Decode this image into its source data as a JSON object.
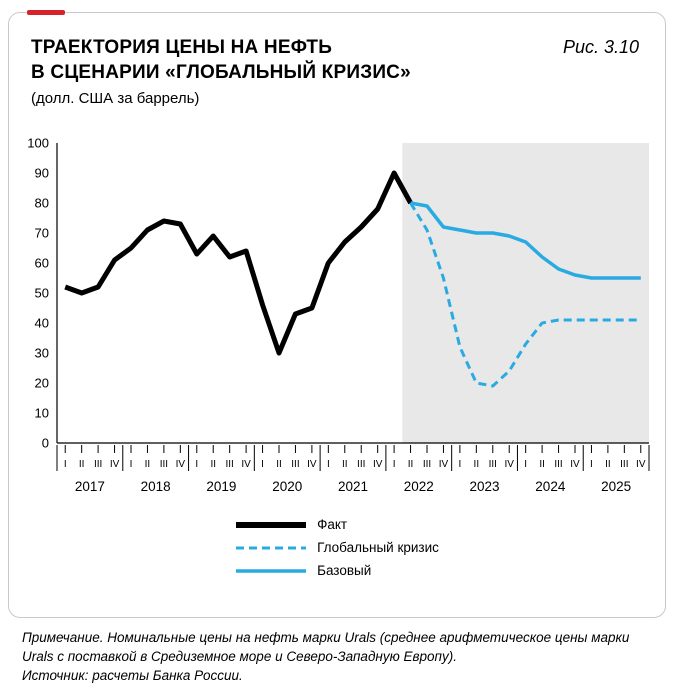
{
  "header": {
    "title_line1": "ТРАЕКТОРИЯ ЦЕНЫ НА НЕФТЬ",
    "title_line2": "В СЦЕНАРИИ «ГЛОБАЛЬНЫЙ КРИЗИС»",
    "subtitle": "(долл. США за баррель)",
    "figure_label": "Рис. 3.10"
  },
  "colors": {
    "fact": "#000000",
    "blue": "#29abe2",
    "accent_red": "#d6232a",
    "forecast_shade": "#e8e8e8",
    "axis": "#000000"
  },
  "chart_data": {
    "type": "line",
    "title": "Траектория цены на нефть в сценарии «Глобальный кризис»",
    "ylabel": "долл. США за баррель",
    "ylim": [
      0,
      100
    ],
    "ytick_step": 10,
    "grid": false,
    "legend_position": "bottom",
    "years": [
      "2017",
      "2018",
      "2019",
      "2020",
      "2021",
      "2022",
      "2023",
      "2024",
      "2025"
    ],
    "quarter_labels": [
      "I",
      "II",
      "III",
      "IV"
    ],
    "forecast_start_index": 21,
    "forecast_start_label": "2022 Q2",
    "series": [
      {
        "name": "Факт",
        "style": "thick-solid",
        "color": "#000000",
        "values": [
          52,
          50,
          52,
          61,
          65,
          71,
          74,
          73,
          63,
          69,
          62,
          64,
          46,
          30,
          43,
          45,
          60,
          67,
          72,
          78,
          90,
          80,
          null,
          null,
          null,
          null,
          null,
          null,
          null,
          null,
          null,
          null,
          null,
          null,
          null,
          null
        ]
      },
      {
        "name": "Глобальный кризис",
        "style": "dashed",
        "color": "#29abe2",
        "values": [
          null,
          null,
          null,
          null,
          null,
          null,
          null,
          null,
          null,
          null,
          null,
          null,
          null,
          null,
          null,
          null,
          null,
          null,
          null,
          null,
          null,
          80,
          71,
          55,
          32,
          20,
          19,
          24,
          33,
          40,
          41,
          41,
          41,
          41,
          41,
          41
        ]
      },
      {
        "name": "Базовый",
        "style": "solid",
        "color": "#29abe2",
        "values": [
          null,
          null,
          null,
          null,
          null,
          null,
          null,
          null,
          null,
          null,
          null,
          null,
          null,
          null,
          null,
          null,
          null,
          null,
          null,
          null,
          null,
          80,
          79,
          72,
          71,
          70,
          70,
          69,
          67,
          62,
          58,
          56,
          55,
          55,
          55,
          55
        ]
      }
    ]
  },
  "notes": {
    "note": "Примечание. Номинальные цены на нефть марки Urals (среднее арифметическое цены марки Urals с поставкой в Средиземное море и Северо-Западную Европу).",
    "source": "Источник: расчеты Банка России."
  }
}
